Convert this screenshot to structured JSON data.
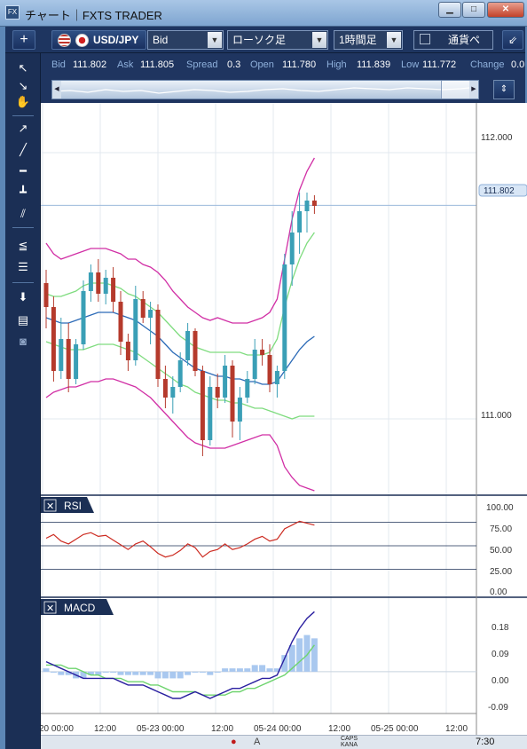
{
  "window": {
    "title": "チャート｜FXTS TRADER",
    "minimize": "▁",
    "maximize": "□",
    "close": "✕"
  },
  "toolbar": {
    "add_label": "+",
    "pair": "USD/JPY",
    "price_type": "Bid",
    "chart_type": "ローソク足",
    "timeframe": "1時間足",
    "compare_label": "通貨ペ",
    "popout_label": "⇙"
  },
  "quote": {
    "bid_label": "Bid",
    "bid": "111.802",
    "ask_label": "Ask",
    "ask": "111.805",
    "spread_label": "Spread",
    "spread": "0.3",
    "open_label": "Open",
    "open": "111.780",
    "high_label": "High",
    "high": "111.839",
    "low_label": "Low",
    "low": "111.772",
    "change_label": "Change",
    "change": "0.0"
  },
  "price_axis": {
    "ticks": [
      "112.000",
      "111.000"
    ],
    "current_price": "111.802"
  },
  "rsi_panel": {
    "label": "RSI",
    "close_icon": "✕",
    "ticks": [
      "100.00",
      "75.00",
      "50.00",
      "25.00",
      "0.00"
    ]
  },
  "macd_panel": {
    "label": "MACD",
    "close_icon": "✕",
    "ticks": [
      "0.18",
      "0.09",
      "0.00",
      "-0.09"
    ]
  },
  "time_axis": {
    "ticks": [
      "20 00:00",
      "12:00",
      "05-23 00:00",
      "12:00",
      "05-24 00:00",
      "12:00",
      "05-25 00:00",
      "12:00"
    ]
  },
  "taskbar": {
    "caps_label": "CAPS",
    "kana_label": "KANA",
    "clock": "7:30"
  },
  "colors": {
    "bull_candle": "#3a9fb6",
    "bear_candle": "#b53a2c",
    "bollinger_outer": "#d12fa5",
    "bollinger_inner": "#7fdc7f",
    "moving_average": "#2b6ab7",
    "rsi_line": "#cc2a20",
    "macd_line": "#2a1fa0",
    "signal_line": "#6fd46f",
    "histogram": "#a9c8ef",
    "price_line": "#9bb9dc"
  },
  "chart_data": {
    "type": "candlestick",
    "pair": "USD/JPY",
    "timeframe": "1時間足",
    "price_ylim": [
      110.72,
      112.18
    ],
    "current_price": 111.802,
    "candles": [
      {
        "o": 111.51,
        "h": 111.56,
        "l": 111.34,
        "c": 111.42
      },
      {
        "o": 111.42,
        "h": 111.46,
        "l": 111.14,
        "c": 111.18
      },
      {
        "o": 111.18,
        "h": 111.38,
        "l": 111.15,
        "c": 111.3
      },
      {
        "o": 111.3,
        "h": 111.36,
        "l": 111.1,
        "c": 111.15
      },
      {
        "o": 111.15,
        "h": 111.3,
        "l": 111.13,
        "c": 111.28
      },
      {
        "o": 111.28,
        "h": 111.52,
        "l": 111.26,
        "c": 111.48
      },
      {
        "o": 111.48,
        "h": 111.58,
        "l": 111.44,
        "c": 111.55
      },
      {
        "o": 111.55,
        "h": 111.6,
        "l": 111.44,
        "c": 111.47
      },
      {
        "o": 111.47,
        "h": 111.56,
        "l": 111.43,
        "c": 111.53
      },
      {
        "o": 111.53,
        "h": 111.57,
        "l": 111.4,
        "c": 111.44
      },
      {
        "o": 111.44,
        "h": 111.48,
        "l": 111.24,
        "c": 111.29
      },
      {
        "o": 111.29,
        "h": 111.32,
        "l": 111.18,
        "c": 111.22
      },
      {
        "o": 111.22,
        "h": 111.5,
        "l": 111.2,
        "c": 111.45
      },
      {
        "o": 111.45,
        "h": 111.48,
        "l": 111.36,
        "c": 111.38
      },
      {
        "o": 111.38,
        "h": 111.44,
        "l": 111.28,
        "c": 111.41
      },
      {
        "o": 111.41,
        "h": 111.43,
        "l": 111.12,
        "c": 111.15
      },
      {
        "o": 111.15,
        "h": 111.2,
        "l": 111.04,
        "c": 111.08
      },
      {
        "o": 111.08,
        "h": 111.16,
        "l": 111.02,
        "c": 111.12
      },
      {
        "o": 111.12,
        "h": 111.25,
        "l": 111.1,
        "c": 111.22
      },
      {
        "o": 111.22,
        "h": 111.36,
        "l": 111.2,
        "c": 111.33
      },
      {
        "o": 111.33,
        "h": 111.34,
        "l": 111.16,
        "c": 111.18
      },
      {
        "o": 111.18,
        "h": 111.2,
        "l": 110.86,
        "c": 110.92
      },
      {
        "o": 110.92,
        "h": 111.16,
        "l": 110.9,
        "c": 111.12
      },
      {
        "o": 111.12,
        "h": 111.17,
        "l": 111.04,
        "c": 111.08
      },
      {
        "o": 111.08,
        "h": 111.24,
        "l": 111.06,
        "c": 111.2
      },
      {
        "o": 111.2,
        "h": 111.22,
        "l": 110.93,
        "c": 110.99
      },
      {
        "o": 110.99,
        "h": 111.12,
        "l": 110.92,
        "c": 111.08
      },
      {
        "o": 111.08,
        "h": 111.18,
        "l": 111.06,
        "c": 111.15
      },
      {
        "o": 111.15,
        "h": 111.3,
        "l": 111.13,
        "c": 111.26
      },
      {
        "o": 111.26,
        "h": 111.3,
        "l": 111.2,
        "c": 111.24
      },
      {
        "o": 111.24,
        "h": 111.28,
        "l": 111.1,
        "c": 111.13
      },
      {
        "o": 111.13,
        "h": 111.2,
        "l": 111.08,
        "c": 111.18
      },
      {
        "o": 111.18,
        "h": 111.62,
        "l": 111.15,
        "c": 111.58
      },
      {
        "o": 111.58,
        "h": 111.78,
        "l": 111.5,
        "c": 111.7
      },
      {
        "o": 111.7,
        "h": 111.85,
        "l": 111.62,
        "c": 111.78
      },
      {
        "o": 111.78,
        "h": 111.85,
        "l": 111.7,
        "c": 111.82
      },
      {
        "o": 111.82,
        "h": 111.84,
        "l": 111.77,
        "c": 111.8
      }
    ],
    "bollinger_upper": [
      111.66,
      111.62,
      111.6,
      111.61,
      111.62,
      111.63,
      111.64,
      111.64,
      111.64,
      111.63,
      111.62,
      111.6,
      111.6,
      111.58,
      111.57,
      111.55,
      111.52,
      111.48,
      111.45,
      111.42,
      111.4,
      111.38,
      111.37,
      111.38,
      111.37,
      111.36,
      111.36,
      111.36,
      111.37,
      111.38,
      111.4,
      111.45,
      111.6,
      111.75,
      111.86,
      111.93,
      111.98
    ],
    "bollinger_inner_upper": [
      111.47,
      111.46,
      111.46,
      111.47,
      111.48,
      111.5,
      111.51,
      111.51,
      111.51,
      111.5,
      111.49,
      111.47,
      111.46,
      111.44,
      111.42,
      111.4,
      111.37,
      111.34,
      111.31,
      111.29,
      111.27,
      111.26,
      111.25,
      111.25,
      111.25,
      111.25,
      111.25,
      111.24,
      111.24,
      111.24,
      111.25,
      111.3,
      111.42,
      111.52,
      111.6,
      111.66,
      111.7
    ],
    "moving_average": [
      111.38,
      111.37,
      111.36,
      111.36,
      111.37,
      111.38,
      111.39,
      111.4,
      111.4,
      111.4,
      111.39,
      111.38,
      111.37,
      111.35,
      111.33,
      111.31,
      111.28,
      111.25,
      111.23,
      111.21,
      111.19,
      111.18,
      111.17,
      111.16,
      111.16,
      111.15,
      111.15,
      111.14,
      111.14,
      111.13,
      111.13,
      111.14,
      111.18,
      111.22,
      111.26,
      111.29,
      111.31
    ],
    "bollinger_inner_lower": [
      111.29,
      111.28,
      111.27,
      111.26,
      111.26,
      111.26,
      111.27,
      111.28,
      111.28,
      111.28,
      111.27,
      111.26,
      111.25,
      111.23,
      111.21,
      111.19,
      111.17,
      111.15,
      111.13,
      111.12,
      111.1,
      111.09,
      111.08,
      111.07,
      111.07,
      111.06,
      111.06,
      111.05,
      111.04,
      111.04,
      111.03,
      111.02,
      111.01,
      111.0,
      111.01,
      111.01,
      111.01
    ],
    "bollinger_lower": [
      111.08,
      111.1,
      111.11,
      111.12,
      111.12,
      111.13,
      111.14,
      111.14,
      111.15,
      111.15,
      111.14,
      111.13,
      111.12,
      111.1,
      111.08,
      111.05,
      111.02,
      110.99,
      110.96,
      110.93,
      110.91,
      110.9,
      110.89,
      110.89,
      110.89,
      110.9,
      110.91,
      110.92,
      110.93,
      110.94,
      110.94,
      110.9,
      110.82,
      110.78,
      110.75,
      110.74,
      110.73
    ],
    "rsi": [
      58,
      62,
      55,
      52,
      57,
      62,
      64,
      60,
      61,
      56,
      51,
      46,
      52,
      55,
      49,
      42,
      38,
      40,
      45,
      52,
      48,
      38,
      44,
      46,
      52,
      46,
      48,
      52,
      57,
      60,
      55,
      57,
      68,
      72,
      76,
      74,
      72
    ],
    "rsi_ylim": [
      0,
      100
    ],
    "rsi_levels": [
      75,
      50,
      25
    ],
    "macd": [
      0.03,
      0.02,
      0.01,
      0.0,
      -0.01,
      -0.02,
      -0.02,
      -0.02,
      -0.02,
      -0.02,
      -0.03,
      -0.04,
      -0.04,
      -0.04,
      -0.05,
      -0.06,
      -0.07,
      -0.08,
      -0.08,
      -0.07,
      -0.06,
      -0.07,
      -0.08,
      -0.07,
      -0.06,
      -0.05,
      -0.05,
      -0.04,
      -0.03,
      -0.02,
      -0.02,
      -0.01,
      0.04,
      0.09,
      0.13,
      0.16,
      0.18
    ],
    "signal": [
      0.02,
      0.02,
      0.02,
      0.01,
      0.01,
      0.0,
      -0.01,
      -0.01,
      -0.02,
      -0.02,
      -0.02,
      -0.03,
      -0.03,
      -0.03,
      -0.04,
      -0.04,
      -0.05,
      -0.06,
      -0.06,
      -0.06,
      -0.06,
      -0.07,
      -0.07,
      -0.07,
      -0.07,
      -0.06,
      -0.06,
      -0.05,
      -0.05,
      -0.04,
      -0.03,
      -0.02,
      -0.01,
      0.01,
      0.03,
      0.05,
      0.08
    ],
    "macd_ylim": [
      -0.12,
      0.21
    ]
  }
}
